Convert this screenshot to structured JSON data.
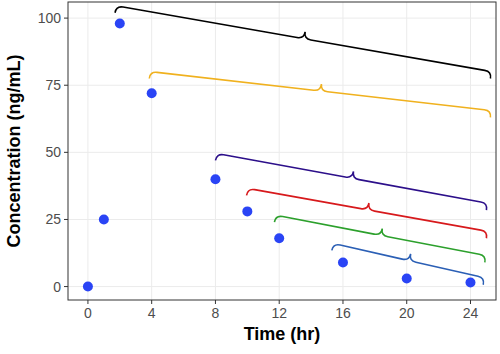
{
  "chart_data": {
    "type": "scatter",
    "x_label": "Time (hr)",
    "y_label": "Concentration (ng/mL)",
    "xlim": [
      -1.25,
      25.6
    ],
    "ylim": [
      -5,
      106
    ],
    "xticks": [
      0,
      4,
      8,
      12,
      16,
      20,
      24
    ],
    "yticks": [
      0,
      25,
      50,
      75,
      100
    ],
    "grid": true,
    "series": [
      {
        "type": "scatter",
        "color": "#2a44f5",
        "marker": "circle",
        "x": [
          0,
          1,
          2,
          4,
          8,
          10,
          12,
          16,
          20,
          24
        ],
        "values": [
          0,
          25,
          98,
          72,
          40,
          28,
          18,
          9,
          3,
          1.5
        ]
      },
      {
        "type": "bracket",
        "color": "#000000",
        "x": [
          1.7,
          25.25
        ],
        "values": [
          102,
          77.5
        ]
      },
      {
        "type": "bracket",
        "color": "#f0b11e",
        "x": [
          3.85,
          25.25
        ],
        "values": [
          77.5,
          63
        ]
      },
      {
        "type": "bracket",
        "color": "#2c0f8a",
        "x": [
          8.0,
          25.0
        ],
        "values": [
          47,
          28.5
        ]
      },
      {
        "type": "bracket",
        "color": "#d7191c",
        "x": [
          9.95,
          25.0
        ],
        "values": [
          34,
          18
        ]
      },
      {
        "type": "bracket",
        "color": "#2ca02c",
        "x": [
          11.7,
          24.9
        ],
        "values": [
          24,
          9
        ]
      },
      {
        "type": "bracket",
        "color": "#2b5fb5",
        "x": [
          15.3,
          24.8
        ],
        "values": [
          13.5,
          0.7
        ]
      }
    ]
  }
}
